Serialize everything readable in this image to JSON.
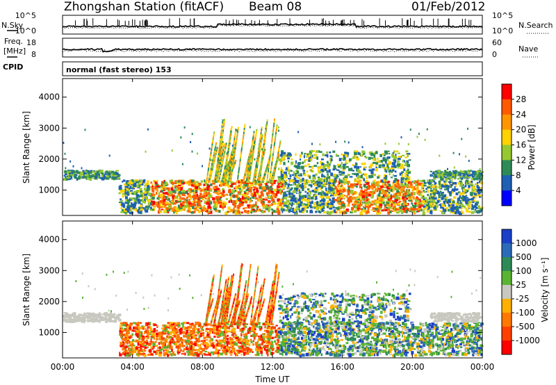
{
  "header": {
    "station": "Zhongshan Station (fitACF)",
    "beam": "Beam 08",
    "date": "01/Feb/2012"
  },
  "noise_panel": {
    "left_label": "N.Sky",
    "right_label": "N.Search",
    "left_ticks": [
      "10^5",
      "10^0"
    ],
    "right_ticks": [
      "10^5",
      "10^0"
    ]
  },
  "freq_panel": {
    "left_label_1": "Freq.",
    "left_label_2": "[MHz]",
    "right_label": "Nave",
    "left_ticks": [
      "18",
      "8"
    ],
    "right_ticks": [
      "60",
      "0"
    ],
    "cpid_label": "CPID"
  },
  "cpid_text": "normal (fast stereo) 153",
  "chart_data": [
    {
      "type": "heatmap",
      "quantity": "power",
      "ylabel": "Slant Range [km]",
      "yticks": [
        "4000",
        "3000",
        "2000",
        "1000"
      ],
      "ytick_values": [
        4000,
        3000,
        2000,
        1000
      ],
      "ylim": [
        180,
        4600
      ],
      "xlim_hours": [
        0,
        24
      ],
      "colorbar_label": "Power [dB]",
      "colorbar_ticks": [
        "28",
        "24",
        "20",
        "16",
        "12",
        "8",
        "4"
      ],
      "colorbar_colors": [
        "#ff0000",
        "#ff5a00",
        "#ff9600",
        "#ffd200",
        "#96c832",
        "#2e8b57",
        "#1f5fb4",
        "#0000ff"
      ]
    },
    {
      "type": "heatmap",
      "quantity": "velocity",
      "ylabel": "Slant Range [km]",
      "yticks": [
        "4000",
        "3000",
        "2000",
        "1000"
      ],
      "ytick_values": [
        4000,
        3000,
        2000,
        1000
      ],
      "ylim": [
        180,
        4600
      ],
      "xlim_hours": [
        0,
        24
      ],
      "colorbar_label": "Velocity [m s⁻¹]",
      "colorbar_ticks": [
        "1000",
        "500",
        "100",
        "25",
        "-25",
        "-100",
        "-500",
        "-1000"
      ],
      "colorbar_colors": [
        "#1a3fc8",
        "#2b6ab8",
        "#2e8b57",
        "#5ab432",
        "#c8c8c0",
        "#ffb000",
        "#ff7800",
        "#ff4000",
        "#ff0000"
      ],
      "xlabel": "Time UT",
      "xticks": [
        "00:00",
        "04:00",
        "08:00",
        "12:00",
        "16:00",
        "20:00",
        "00:00"
      ]
    }
  ]
}
